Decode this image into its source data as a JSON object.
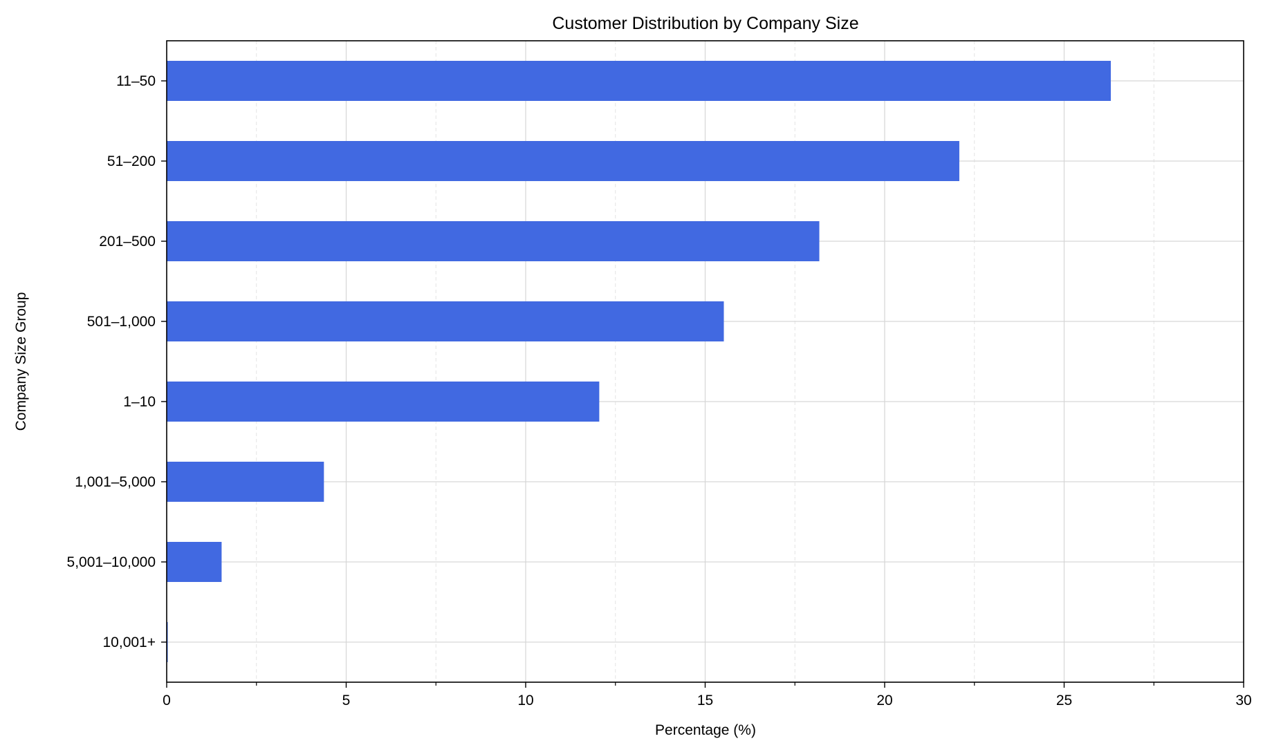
{
  "chart_data": {
    "type": "bar",
    "orientation": "horizontal",
    "title": "Customer Distribution by Company Size",
    "xlabel": "Percentage (%)",
    "ylabel": "Company Size Group",
    "categories": [
      "11–50",
      "51–200",
      "201–500",
      "501–1,000",
      "1–10",
      "1,001–5,000",
      "5,001–10,000",
      "10,001+"
    ],
    "values": [
      26.3,
      22.08,
      18.18,
      15.52,
      12.05,
      4.38,
      1.53,
      0.03
    ],
    "xlim": [
      0,
      30
    ],
    "xticks": [
      0,
      5,
      10,
      15,
      20,
      25,
      30
    ],
    "xtick_labels": [
      "0",
      "5",
      "10",
      "15",
      "20",
      "25",
      "30"
    ],
    "minor_xticks": [
      2.5,
      7.5,
      12.5,
      17.5,
      22.5,
      27.5
    ],
    "grid": true,
    "bar_color": "#4169e1"
  }
}
